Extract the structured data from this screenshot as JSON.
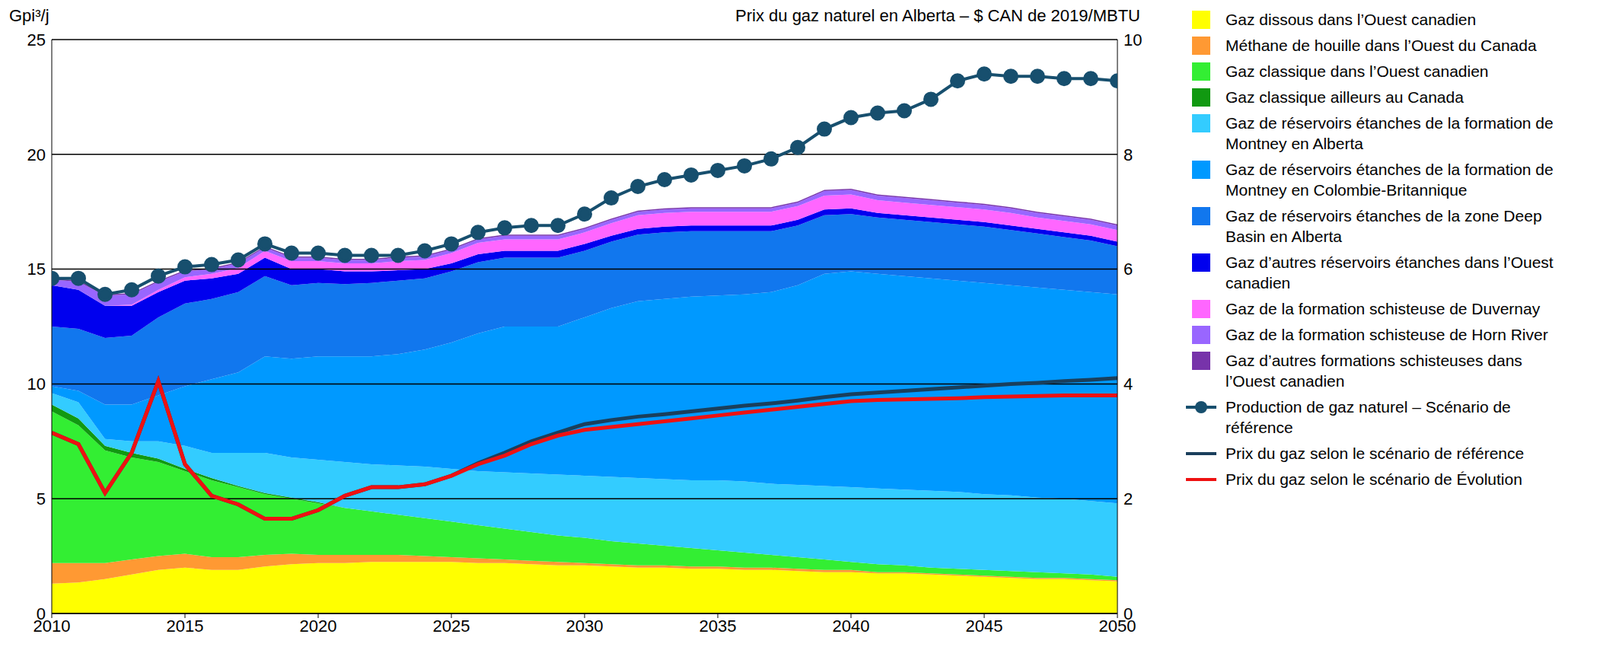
{
  "chart_data": {
    "type": "area",
    "stacked": true,
    "grid": true,
    "legend": "right",
    "y_label": "Gpi³/j",
    "y2_label": "Prix du gaz naturel en Alberta – $ CAN de 2019/MBTU",
    "xlim": [
      2010,
      2050
    ],
    "xticks": [
      2010,
      2015,
      2020,
      2025,
      2030,
      2035,
      2040,
      2045,
      2050
    ],
    "ylim": [
      0,
      25
    ],
    "yticks": [
      0,
      5,
      10,
      15,
      20,
      25
    ],
    "y2lim": [
      0,
      10
    ],
    "y2ticks": [
      0,
      2,
      4,
      6,
      8,
      10
    ],
    "x": [
      2010,
      2011,
      2012,
      2013,
      2014,
      2015,
      2016,
      2017,
      2018,
      2019,
      2020,
      2021,
      2022,
      2023,
      2024,
      2025,
      2026,
      2027,
      2028,
      2029,
      2030,
      2031,
      2032,
      2033,
      2034,
      2035,
      2036,
      2037,
      2038,
      2039,
      2040,
      2041,
      2042,
      2043,
      2044,
      2045,
      2046,
      2047,
      2048,
      2049,
      2050
    ],
    "series": [
      {
        "name": "Gaz dissous dans l’Ouest canadien",
        "type": "area",
        "color": "#FFFF00",
        "values": [
          1.3,
          1.35,
          1.5,
          1.7,
          1.9,
          2.0,
          1.9,
          1.9,
          2.05,
          2.15,
          2.2,
          2.2,
          2.25,
          2.25,
          2.25,
          2.25,
          2.2,
          2.2,
          2.15,
          2.1,
          2.1,
          2.05,
          2.0,
          2.0,
          1.95,
          1.95,
          1.9,
          1.9,
          1.85,
          1.8,
          1.8,
          1.75,
          1.75,
          1.7,
          1.65,
          1.6,
          1.55,
          1.5,
          1.5,
          1.45,
          1.4
        ]
      },
      {
        "name": "Méthane de houille dans l’Ouest du Canada",
        "type": "area",
        "color": "#FF9933",
        "values": [
          0.9,
          0.85,
          0.7,
          0.65,
          0.6,
          0.6,
          0.55,
          0.55,
          0.5,
          0.45,
          0.35,
          0.35,
          0.3,
          0.3,
          0.25,
          0.2,
          0.2,
          0.15,
          0.15,
          0.15,
          0.1,
          0.1,
          0.1,
          0.1,
          0.1,
          0.1,
          0.1,
          0.1,
          0.1,
          0.1,
          0.1,
          0.05,
          0.05,
          0.05,
          0.05,
          0.05,
          0.05,
          0.05,
          0.05,
          0.05,
          0.05
        ]
      },
      {
        "name": "Gaz classique dans l’Ouest canadien",
        "type": "area",
        "color": "#33EE33",
        "values": [
          6.6,
          6.0,
          4.9,
          4.45,
          4.1,
          3.6,
          3.35,
          3.05,
          2.65,
          2.4,
          2.25,
          2.05,
          1.9,
          1.75,
          1.65,
          1.55,
          1.45,
          1.35,
          1.25,
          1.15,
          1.1,
          1.0,
          0.95,
          0.85,
          0.8,
          0.7,
          0.65,
          0.55,
          0.5,
          0.45,
          0.35,
          0.35,
          0.3,
          0.25,
          0.25,
          0.25,
          0.25,
          0.25,
          0.2,
          0.2,
          0.15
        ]
      },
      {
        "name": "Gaz classique ailleurs au Canada",
        "type": "area",
        "color": "#119911",
        "values": [
          0.3,
          0.3,
          0.2,
          0.2,
          0.15,
          0.1,
          0.1,
          0.05,
          0.05,
          0.05,
          0.05,
          0,
          0,
          0,
          0,
          0,
          0,
          0,
          0,
          0,
          0,
          0,
          0,
          0,
          0,
          0,
          0,
          0,
          0,
          0,
          0,
          0,
          0,
          0,
          0,
          0,
          0,
          0,
          0,
          0,
          0
        ]
      },
      {
        "name": "Gaz de réservoirs étanches de la formation de Montney en Alberta",
        "type": "area",
        "color": "#33CCFF",
        "values": [
          0.5,
          0.7,
          0.3,
          0.5,
          0.75,
          1.0,
          1.1,
          1.45,
          1.75,
          1.75,
          1.85,
          2.0,
          2.05,
          2.15,
          2.25,
          2.3,
          2.35,
          2.45,
          2.55,
          2.65,
          2.7,
          2.8,
          2.85,
          2.9,
          2.95,
          3.05,
          3.1,
          3.1,
          3.15,
          3.2,
          3.25,
          3.3,
          3.3,
          3.35,
          3.35,
          3.3,
          3.3,
          3.25,
          3.25,
          3.2,
          3.2
        ]
      },
      {
        "name": "Gaz de réservoirs étanches de la formation de Montney en Colombie-Britannique",
        "type": "area",
        "color": "#0099FF",
        "values": [
          0.3,
          0.5,
          1.5,
          1.6,
          2.0,
          2.6,
          3.2,
          3.5,
          4.2,
          4.3,
          4.5,
          4.6,
          4.7,
          4.85,
          5.1,
          5.5,
          6.0,
          6.35,
          6.4,
          6.45,
          6.9,
          7.35,
          7.7,
          7.85,
          8.0,
          8.05,
          8.15,
          8.35,
          8.7,
          9.25,
          9.4,
          9.35,
          9.3,
          9.25,
          9.2,
          9.2,
          9.15,
          9.15,
          9.1,
          9.1,
          9.1
        ]
      },
      {
        "name": "Gaz de réservoirs étanches de la zone Deep Basin en Alberta",
        "type": "area",
        "color": "#1177EE",
        "values": [
          2.6,
          2.7,
          2.9,
          3.0,
          3.4,
          3.6,
          3.5,
          3.5,
          3.5,
          3.2,
          3.2,
          3.15,
          3.2,
          3.2,
          3.1,
          3.1,
          3.1,
          3.0,
          3.0,
          3.0,
          2.9,
          2.9,
          2.9,
          2.9,
          2.85,
          2.8,
          2.75,
          2.65,
          2.6,
          2.55,
          2.5,
          2.45,
          2.45,
          2.45,
          2.45,
          2.45,
          2.4,
          2.35,
          2.3,
          2.25,
          2.1
        ]
      },
      {
        "name": "Gaz d’autres réservoirs étanches dans l’Ouest canadien",
        "type": "area",
        "color": "#0000EE",
        "values": [
          1.8,
          1.7,
          1.4,
          1.3,
          1.1,
          1.0,
          0.9,
          0.8,
          0.8,
          0.7,
          0.6,
          0.55,
          0.5,
          0.45,
          0.4,
          0.35,
          0.35,
          0.3,
          0.3,
          0.3,
          0.3,
          0.25,
          0.25,
          0.25,
          0.25,
          0.25,
          0.25,
          0.25,
          0.25,
          0.25,
          0.25,
          0.2,
          0.2,
          0.2,
          0.2,
          0.2,
          0.2,
          0.2,
          0.2,
          0.2,
          0.2
        ]
      },
      {
        "name": "Gaz de la formation schisteuse de Duvernay",
        "type": "area",
        "color": "#FF66FF",
        "values": [
          0,
          0,
          0,
          0.05,
          0.1,
          0.15,
          0.2,
          0.25,
          0.3,
          0.35,
          0.35,
          0.35,
          0.35,
          0.4,
          0.4,
          0.45,
          0.5,
          0.5,
          0.5,
          0.5,
          0.5,
          0.55,
          0.6,
          0.6,
          0.6,
          0.6,
          0.6,
          0.6,
          0.6,
          0.6,
          0.6,
          0.55,
          0.55,
          0.55,
          0.55,
          0.55,
          0.55,
          0.5,
          0.5,
          0.5,
          0.5
        ]
      },
      {
        "name": "Gaz de la formation schisteuse de Horn River",
        "type": "area",
        "color": "#9966FF",
        "values": [
          0.25,
          0.35,
          0.45,
          0.45,
          0.35,
          0.25,
          0.2,
          0.2,
          0.15,
          0.15,
          0.15,
          0.15,
          0.15,
          0.15,
          0.15,
          0.15,
          0.15,
          0.15,
          0.15,
          0.15,
          0.15,
          0.15,
          0.15,
          0.15,
          0.15,
          0.15,
          0.15,
          0.15,
          0.15,
          0.2,
          0.2,
          0.2,
          0.2,
          0.2,
          0.2,
          0.2,
          0.2,
          0.2,
          0.2,
          0.2,
          0.2
        ]
      },
      {
        "name": "Gaz d’autres formations schisteuses dans l’Ouest canadien",
        "type": "area",
        "color": "#7733AA",
        "values": [
          0.05,
          0.05,
          0.05,
          0.05,
          0.05,
          0.05,
          0.05,
          0.05,
          0.05,
          0.05,
          0.05,
          0.05,
          0.05,
          0.05,
          0.05,
          0.05,
          0.05,
          0.05,
          0.05,
          0.05,
          0.05,
          0.05,
          0.05,
          0.05,
          0.05,
          0.05,
          0.05,
          0.05,
          0.05,
          0.05,
          0.05,
          0.05,
          0.05,
          0.05,
          0.05,
          0.05,
          0.05,
          0.05,
          0.05,
          0.05,
          0.05
        ]
      },
      {
        "name": "Production de gaz naturel – Scénario de référence",
        "type": "line",
        "marker": "circle",
        "color": "#174F6E",
        "values": [
          14.6,
          14.6,
          13.9,
          14.1,
          14.7,
          15.1,
          15.2,
          15.4,
          16.1,
          15.7,
          15.7,
          15.6,
          15.6,
          15.6,
          15.8,
          16.1,
          16.6,
          16.8,
          16.9,
          16.9,
          17.4,
          18.1,
          18.6,
          18.9,
          19.1,
          19.3,
          19.5,
          19.8,
          20.3,
          21.1,
          21.6,
          21.8,
          21.9,
          22.4,
          23.2,
          23.5,
          23.4,
          23.4,
          23.3,
          23.3,
          23.2
        ]
      },
      {
        "name": "Prix du gaz selon le scénario de référence",
        "type": "line",
        "axis": "y2",
        "color": "#1A3F5C",
        "values": [
          3.15,
          2.95,
          2.1,
          2.8,
          4.05,
          2.6,
          2.05,
          1.9,
          1.65,
          1.65,
          1.8,
          2.05,
          2.2,
          2.2,
          2.25,
          2.4,
          2.62,
          2.8,
          3.0,
          3.15,
          3.3,
          3.37,
          3.43,
          3.47,
          3.52,
          3.57,
          3.62,
          3.66,
          3.71,
          3.77,
          3.82,
          3.85,
          3.88,
          3.91,
          3.94,
          3.97,
          4.0,
          4.02,
          4.05,
          4.07,
          4.1
        ]
      },
      {
        "name": "Prix du gaz selon le scénario de Évolution",
        "type": "line",
        "axis": "y2",
        "color": "#EE1111",
        "values": [
          3.15,
          2.95,
          2.1,
          2.8,
          4.05,
          2.6,
          2.05,
          1.9,
          1.65,
          1.65,
          1.8,
          2.05,
          2.2,
          2.2,
          2.25,
          2.4,
          2.6,
          2.75,
          2.95,
          3.1,
          3.2,
          3.25,
          3.3,
          3.35,
          3.4,
          3.45,
          3.5,
          3.55,
          3.6,
          3.65,
          3.7,
          3.72,
          3.73,
          3.74,
          3.75,
          3.77,
          3.78,
          3.79,
          3.8,
          3.8,
          3.8
        ]
      }
    ]
  }
}
